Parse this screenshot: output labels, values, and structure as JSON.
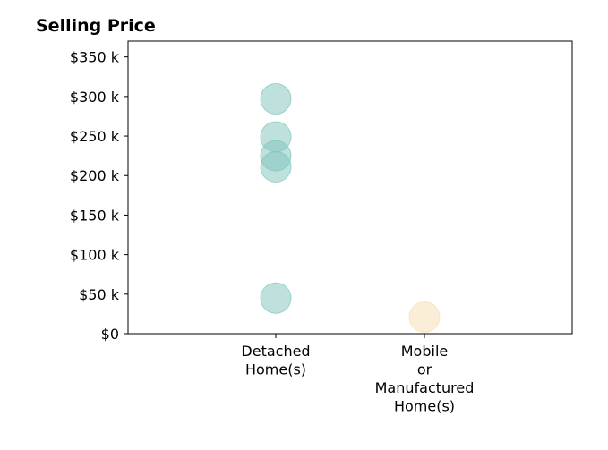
{
  "chart_data": {
    "type": "scatter",
    "title": "Selling Price",
    "xlabel": "",
    "ylabel": "",
    "categories": [
      [
        "Detached",
        "Home(s)"
      ],
      [
        "Mobile",
        "or",
        "Manufactured",
        "Home(s)"
      ]
    ],
    "ylim": [
      0,
      370000
    ],
    "yticks": [
      0,
      50000,
      100000,
      150000,
      200000,
      250000,
      300000,
      350000
    ],
    "ytick_labels": [
      "$0",
      "$50 k",
      "$100 k",
      "$150 k",
      "$200 k",
      "$250 k",
      "$300 k",
      "$350 k"
    ],
    "grid": false,
    "legend": "none",
    "series": [
      {
        "category_index": 0,
        "color": "#7fc4bc",
        "values": [
          297000,
          249000,
          225000,
          211000,
          45000
        ]
      },
      {
        "category_index": 1,
        "color": "#f5deb3",
        "values": [
          21000
        ]
      }
    ]
  }
}
